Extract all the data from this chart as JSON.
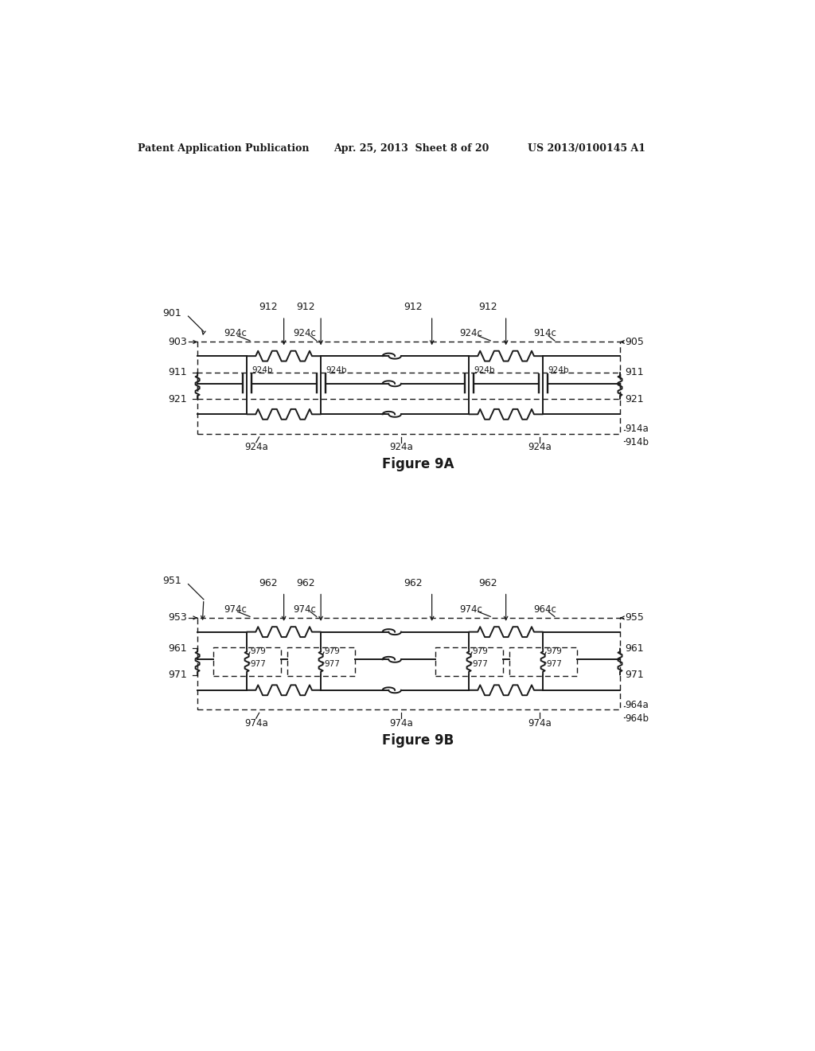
{
  "bg_color": "#ffffff",
  "text_color": "#1a1a1a",
  "line_color": "#1a1a1a",
  "header_left": "Patent Application Publication",
  "header_mid": "Apr. 25, 2013  Sheet 8 of 20",
  "header_right": "US 2013/0100145 A1",
  "fig9a_title": "Figure 9A",
  "fig9b_title": "Figure 9B"
}
